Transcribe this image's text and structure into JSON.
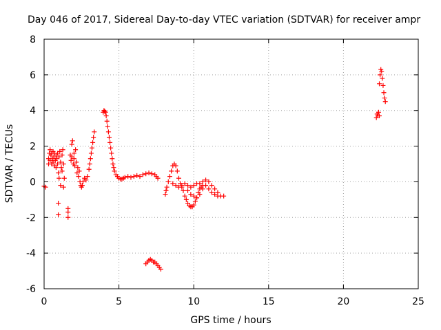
{
  "chart_data": {
    "type": "scatter",
    "title": "Day 046 of 2017, Sidereal Day-to-day VTEC variation (SDTVAR) for receiver ampr",
    "xlabel": "GPS time / hours",
    "ylabel": "SDTVAR / TECUs",
    "xlim": [
      0,
      25
    ],
    "ylim": [
      -6,
      8
    ],
    "xticks": [
      "0",
      "5",
      "10",
      "15",
      "20",
      "25"
    ],
    "yticks": [
      "-6",
      "-4",
      "-2",
      "0",
      "2",
      "4",
      "6",
      "8"
    ],
    "grid": true,
    "marker": "+",
    "marker_color": "#ff0000",
    "series": [
      {
        "name": "SDTVAR",
        "points": [
          [
            0.0,
            -0.25
          ],
          [
            0.1,
            -0.3
          ],
          [
            0.3,
            1.3
          ],
          [
            0.3,
            1.0
          ],
          [
            0.35,
            1.6
          ],
          [
            0.4,
            1.8
          ],
          [
            0.4,
            1.2
          ],
          [
            0.45,
            1.5
          ],
          [
            0.5,
            1.0
          ],
          [
            0.5,
            1.6
          ],
          [
            0.55,
            1.3
          ],
          [
            0.6,
            1.7
          ],
          [
            0.6,
            1.1
          ],
          [
            0.65,
            1.4
          ],
          [
            0.7,
            0.9
          ],
          [
            0.7,
            1.6
          ],
          [
            0.75,
            1.2
          ],
          [
            0.8,
            1.5
          ],
          [
            0.8,
            0.8
          ],
          [
            0.85,
            1.3
          ],
          [
            0.9,
            1.6
          ],
          [
            0.9,
            1.0
          ],
          [
            0.95,
            0.5
          ],
          [
            1.0,
            1.4
          ],
          [
            1.0,
            0.2
          ],
          [
            1.05,
            1.7
          ],
          [
            1.1,
            1.1
          ],
          [
            1.1,
            -0.2
          ],
          [
            1.15,
            0.8
          ],
          [
            1.2,
            1.5
          ],
          [
            1.2,
            0.6
          ],
          [
            1.25,
            1.8
          ],
          [
            1.3,
            1.0
          ],
          [
            1.3,
            -0.3
          ],
          [
            1.35,
            0.2
          ],
          [
            0.95,
            -1.2
          ],
          [
            0.95,
            -1.85
          ],
          [
            1.6,
            -1.5
          ],
          [
            1.6,
            -1.7
          ],
          [
            1.6,
            -2.0
          ],
          [
            1.75,
            1.5
          ],
          [
            1.8,
            1.2
          ],
          [
            1.85,
            2.1
          ],
          [
            1.85,
            1.4
          ],
          [
            1.9,
            2.3
          ],
          [
            1.95,
            1.0
          ],
          [
            2.0,
            1.6
          ],
          [
            2.0,
            1.3
          ],
          [
            2.05,
            0.9
          ],
          [
            2.1,
            1.8
          ],
          [
            2.15,
            1.1
          ],
          [
            2.2,
            0.5
          ],
          [
            2.25,
            0.8
          ],
          [
            2.3,
            0.3
          ],
          [
            2.35,
            0.6
          ],
          [
            2.4,
            0.0
          ],
          [
            2.45,
            -0.2
          ],
          [
            2.5,
            -0.3
          ],
          [
            2.55,
            -0.2
          ],
          [
            2.6,
            0.0
          ],
          [
            2.7,
            0.2
          ],
          [
            2.8,
            0.1
          ],
          [
            2.9,
            0.3
          ],
          [
            3.0,
            0.7
          ],
          [
            3.05,
            1.0
          ],
          [
            3.1,
            1.3
          ],
          [
            3.15,
            1.6
          ],
          [
            3.2,
            1.9
          ],
          [
            3.25,
            2.2
          ],
          [
            3.3,
            2.5
          ],
          [
            3.35,
            2.8
          ],
          [
            3.95,
            3.9
          ],
          [
            4.0,
            4.0
          ],
          [
            4.05,
            3.95
          ],
          [
            4.1,
            3.9
          ],
          [
            4.15,
            3.7
          ],
          [
            4.2,
            3.4
          ],
          [
            4.25,
            3.1
          ],
          [
            4.3,
            2.8
          ],
          [
            4.35,
            2.5
          ],
          [
            4.4,
            2.2
          ],
          [
            4.45,
            1.9
          ],
          [
            4.5,
            1.6
          ],
          [
            4.55,
            1.3
          ],
          [
            4.6,
            1.0
          ],
          [
            4.65,
            0.8
          ],
          [
            4.7,
            0.6
          ],
          [
            4.8,
            0.4
          ],
          [
            4.9,
            0.3
          ],
          [
            5.0,
            0.2
          ],
          [
            5.1,
            0.15
          ],
          [
            5.2,
            0.15
          ],
          [
            5.3,
            0.2
          ],
          [
            5.4,
            0.25
          ],
          [
            5.6,
            0.3
          ],
          [
            5.8,
            0.25
          ],
          [
            6.0,
            0.3
          ],
          [
            6.2,
            0.35
          ],
          [
            6.4,
            0.3
          ],
          [
            6.6,
            0.4
          ],
          [
            6.8,
            0.45
          ],
          [
            7.0,
            0.5
          ],
          [
            7.2,
            0.45
          ],
          [
            7.4,
            0.4
          ],
          [
            7.5,
            0.3
          ],
          [
            7.6,
            0.2
          ],
          [
            6.8,
            -4.6
          ],
          [
            6.9,
            -4.5
          ],
          [
            7.0,
            -4.4
          ],
          [
            7.1,
            -4.35
          ],
          [
            7.2,
            -4.4
          ],
          [
            7.3,
            -4.5
          ],
          [
            7.4,
            -4.5
          ],
          [
            7.5,
            -4.6
          ],
          [
            7.6,
            -4.7
          ],
          [
            7.7,
            -4.8
          ],
          [
            7.8,
            -4.9
          ],
          [
            8.1,
            -0.7
          ],
          [
            8.15,
            -0.5
          ],
          [
            8.2,
            -0.3
          ],
          [
            8.3,
            0.0
          ],
          [
            8.4,
            0.3
          ],
          [
            8.5,
            0.6
          ],
          [
            8.6,
            0.9
          ],
          [
            8.7,
            1.0
          ],
          [
            8.8,
            0.9
          ],
          [
            8.9,
            0.6
          ],
          [
            9.0,
            0.2
          ],
          [
            9.1,
            -0.1
          ],
          [
            9.2,
            -0.3
          ],
          [
            9.3,
            -0.5
          ],
          [
            9.4,
            -0.8
          ],
          [
            9.5,
            -1.0
          ],
          [
            9.6,
            -1.2
          ],
          [
            9.7,
            -1.35
          ],
          [
            9.8,
            -1.4
          ],
          [
            9.9,
            -1.4
          ],
          [
            10.0,
            -1.3
          ],
          [
            10.1,
            -1.1
          ],
          [
            10.2,
            -0.9
          ],
          [
            10.3,
            -0.6
          ],
          [
            10.4,
            -0.4
          ],
          [
            10.5,
            -0.3
          ],
          [
            10.6,
            -0.2
          ],
          [
            8.6,
            -0.1
          ],
          [
            8.8,
            -0.2
          ],
          [
            9.0,
            -0.3
          ],
          [
            9.2,
            -0.2
          ],
          [
            9.4,
            -0.1
          ],
          [
            9.6,
            -0.2
          ],
          [
            9.8,
            -0.3
          ],
          [
            10.0,
            -0.2
          ],
          [
            10.2,
            -0.1
          ],
          [
            10.4,
            -0.1
          ],
          [
            10.6,
            0.0
          ],
          [
            10.8,
            0.1
          ],
          [
            11.0,
            0.0
          ],
          [
            11.2,
            -0.2
          ],
          [
            11.4,
            -0.4
          ],
          [
            11.6,
            -0.6
          ],
          [
            11.8,
            -0.8
          ],
          [
            12.0,
            -0.8
          ],
          [
            9.6,
            -0.5
          ],
          [
            9.8,
            -0.7
          ],
          [
            10.0,
            -0.8
          ],
          [
            10.2,
            -0.9
          ],
          [
            10.4,
            -0.7
          ],
          [
            10.6,
            -0.4
          ],
          [
            10.8,
            -0.2
          ],
          [
            11.0,
            -0.4
          ],
          [
            11.2,
            -0.6
          ],
          [
            11.4,
            -0.7
          ],
          [
            11.6,
            -0.8
          ],
          [
            22.2,
            3.6
          ],
          [
            22.25,
            3.8
          ],
          [
            22.3,
            3.7
          ],
          [
            22.35,
            3.9
          ],
          [
            22.4,
            3.7
          ],
          [
            22.4,
            5.5
          ],
          [
            22.45,
            6.0
          ],
          [
            22.5,
            6.3
          ],
          [
            22.55,
            6.2
          ],
          [
            22.6,
            5.8
          ],
          [
            22.65,
            5.4
          ],
          [
            22.7,
            5.0
          ],
          [
            22.75,
            4.7
          ],
          [
            22.8,
            4.5
          ]
        ]
      }
    ]
  }
}
